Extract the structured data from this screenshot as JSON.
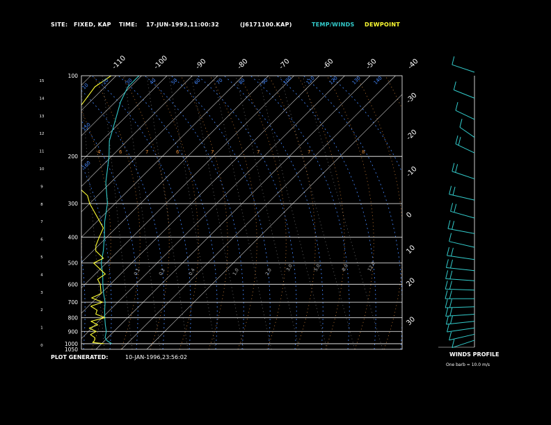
{
  "header": {
    "site_label": "SITE:",
    "site_value": "FIXED, KAP",
    "time_label": "TIME:",
    "time_value": "17-JUN-1993,11:00:32",
    "file_id": "(J6171100.KAP)",
    "legend_temp": "TEMP/WINDS",
    "legend_dew": "DEWPOINT"
  },
  "footer": {
    "generated_label": "PLOT GENERATED:",
    "generated_value": "10-JAN-1996,23:56:02",
    "winds_title": "WINDS PROFILE",
    "winds_note": "One barb = 10.0 m/s"
  },
  "colors": {
    "background": "#000000",
    "temperature": "#33cccc",
    "dewpoint": "#ffff33",
    "isobar": "#ffffff",
    "isotherm": "#ffffff",
    "dry_adiabat": "#e08a3a",
    "moist_adiabat": "#4488ff",
    "mixing_ratio": "#7a7a7a",
    "text": "#ffffff"
  },
  "chart_data": {
    "type": "line",
    "diagram": "skew-T log-P",
    "pressure_levels": [
      100,
      200,
      300,
      400,
      500,
      600,
      700,
      800,
      900,
      1000,
      1050
    ],
    "height_ticks_km": [
      0,
      1,
      2,
      3,
      4,
      5,
      6,
      7,
      8,
      9,
      10,
      11,
      12,
      13,
      14,
      15
    ],
    "isotherm_labels_top": [
      -110,
      -100,
      -90,
      -80,
      -70,
      -60,
      -50,
      -40
    ],
    "isotherm_labels_right": [
      -30,
      -20,
      -10,
      0,
      10,
      20,
      30
    ],
    "dry_adiabat_labels": [
      "4",
      "6",
      "7",
      "6",
      "7",
      "7",
      "7",
      "8"
    ],
    "moist_adiabat_labels": [
      "10",
      "20",
      "30",
      "40",
      "50",
      "60",
      "70",
      "80",
      "90",
      "100",
      "110",
      "120",
      "130",
      "140",
      "150",
      "160"
    ],
    "mixing_ratio_labels": [
      "0.1",
      "0.2",
      "0.4",
      "1.0",
      "2.0",
      "3.0",
      "5.0",
      "8.0",
      "12.0"
    ],
    "series": [
      {
        "key": "temperature",
        "points": [
          [
            1000,
            24
          ],
          [
            975,
            21
          ],
          [
            950,
            19
          ],
          [
            925,
            18
          ],
          [
            900,
            17
          ],
          [
            850,
            14
          ],
          [
            800,
            11
          ],
          [
            750,
            8
          ],
          [
            700,
            5
          ],
          [
            650,
            1
          ],
          [
            600,
            -3
          ],
          [
            550,
            -7
          ],
          [
            500,
            -12
          ],
          [
            450,
            -16
          ],
          [
            400,
            -21
          ],
          [
            350,
            -27
          ],
          [
            300,
            -33
          ],
          [
            250,
            -42
          ],
          [
            200,
            -51
          ],
          [
            175,
            -57
          ],
          [
            150,
            -62
          ],
          [
            125,
            -68
          ],
          [
            110,
            -71
          ],
          [
            100,
            -71
          ]
        ]
      },
      {
        "key": "dewpoint",
        "points": [
          [
            1000,
            21
          ],
          [
            990,
            16
          ],
          [
            975,
            16
          ],
          [
            950,
            15
          ],
          [
            925,
            12
          ],
          [
            900,
            13
          ],
          [
            875,
            9
          ],
          [
            850,
            11
          ],
          [
            825,
            7
          ],
          [
            800,
            11
          ],
          [
            775,
            6
          ],
          [
            750,
            5
          ],
          [
            725,
            1
          ],
          [
            700,
            4
          ],
          [
            675,
            -2
          ],
          [
            650,
            0
          ],
          [
            600,
            -4
          ],
          [
            575,
            -7
          ],
          [
            550,
            -6
          ],
          [
            500,
            -15
          ],
          [
            480,
            -13
          ],
          [
            450,
            -19
          ],
          [
            430,
            -21
          ],
          [
            400,
            -23
          ],
          [
            370,
            -25
          ],
          [
            340,
            -31
          ],
          [
            300,
            -40
          ],
          [
            280,
            -44
          ],
          [
            250,
            -55
          ],
          [
            230,
            -65
          ],
          [
            210,
            -67
          ],
          [
            200,
            -73
          ],
          [
            180,
            -74
          ],
          [
            160,
            -75
          ],
          [
            150,
            -77
          ],
          [
            130,
            -82
          ],
          [
            110,
            -84
          ],
          [
            100,
            -82
          ]
        ]
      }
    ],
    "wind_profile": [
      {
        "p": 1000,
        "dir": 230,
        "spd": 10
      },
      {
        "p": 950,
        "dir": 240,
        "spd": 12
      },
      {
        "p": 900,
        "dir": 250,
        "spd": 14
      },
      {
        "p": 850,
        "dir": 255,
        "spd": 15
      },
      {
        "p": 800,
        "dir": 260,
        "spd": 17
      },
      {
        "p": 750,
        "dir": 265,
        "spd": 18
      },
      {
        "p": 700,
        "dir": 270,
        "spd": 20
      },
      {
        "p": 650,
        "dir": 275,
        "spd": 21
      },
      {
        "p": 600,
        "dir": 280,
        "spd": 20
      },
      {
        "p": 550,
        "dir": 285,
        "spd": 17
      },
      {
        "p": 500,
        "dir": 290,
        "spd": 15
      },
      {
        "p": 450,
        "dir": 300,
        "spd": 14
      },
      {
        "p": 400,
        "dir": 295,
        "spd": 16
      },
      {
        "p": 350,
        "dir": 305,
        "spd": 18
      },
      {
        "p": 300,
        "dir": 300,
        "spd": 20
      },
      {
        "p": 250,
        "dir": 310,
        "spd": 17
      },
      {
        "p": 200,
        "dir": 320,
        "spd": 15
      },
      {
        "p": 175,
        "dir": 330,
        "spd": 12
      },
      {
        "p": 150,
        "dir": 320,
        "spd": 10
      },
      {
        "p": 125,
        "dir": 315,
        "spd": 8
      },
      {
        "p": 100,
        "dir": 310,
        "spd": 7
      }
    ],
    "wind_barb_speed": 10.0,
    "wind_speed_unit": "m/s",
    "grid": true
  }
}
